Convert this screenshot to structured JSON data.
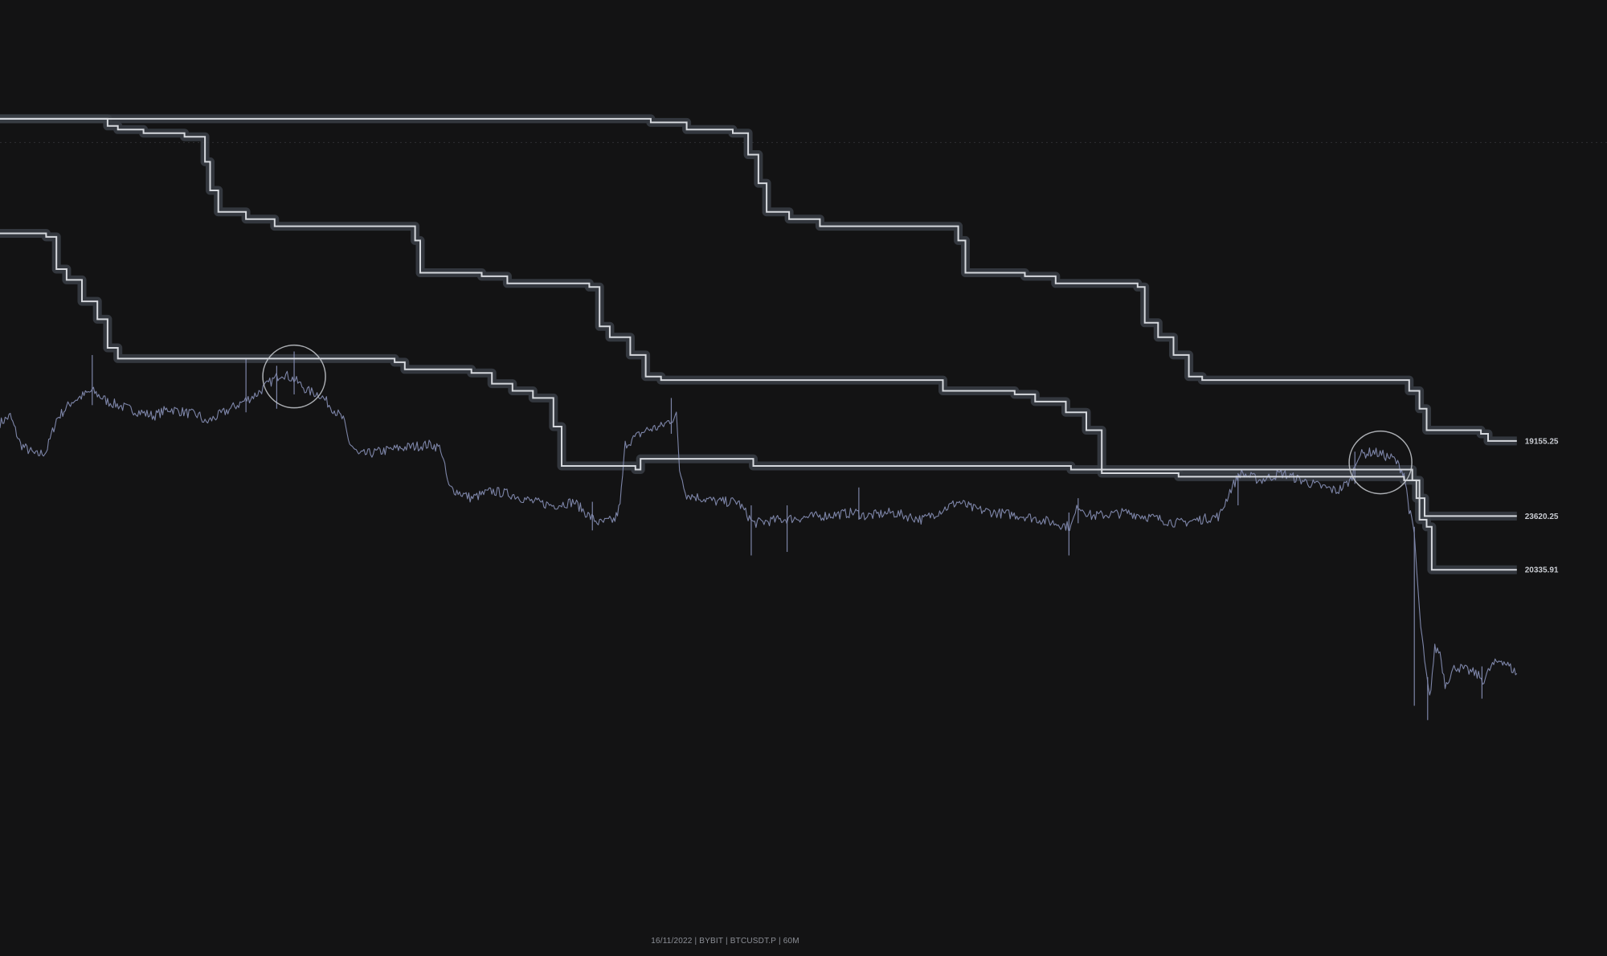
{
  "footer": {
    "date": "16/11/2022",
    "exchange": "BYBIT",
    "symbol": "BTCUSDT.P",
    "timeframe": "60M",
    "separator": "|"
  },
  "colors": {
    "background": "#131314",
    "price": "#7d85a8",
    "level_line": "#d6d9de",
    "level_glow": "#3a3e45",
    "circle": "#c8cbd0",
    "dotted_line": "#2f3033",
    "label": "#c9ccd2"
  },
  "chart_data": {
    "type": "line",
    "title": "",
    "xlabel": "",
    "ylabel": "",
    "ylim": [
      15400,
      25950
    ],
    "grid": false,
    "reference_line": 24970,
    "price_series": {
      "name": "",
      "anchors": [
        [
          0,
          21050
        ],
        [
          10,
          21150
        ],
        [
          20,
          20750
        ],
        [
          35,
          20600
        ],
        [
          45,
          20650
        ],
        [
          55,
          21100
        ],
        [
          70,
          21350
        ],
        [
          90,
          21500
        ],
        [
          105,
          21350
        ],
        [
          125,
          21250
        ],
        [
          150,
          21150
        ],
        [
          165,
          21250
        ],
        [
          195,
          21150
        ],
        [
          200,
          21050
        ],
        [
          225,
          21250
        ],
        [
          250,
          21450
        ],
        [
          262,
          21600
        ],
        [
          275,
          21750
        ],
        [
          288,
          21650
        ],
        [
          300,
          21500
        ],
        [
          312,
          21450
        ],
        [
          325,
          21250
        ],
        [
          335,
          21100
        ],
        [
          340,
          20800
        ],
        [
          350,
          20600
        ],
        [
          390,
          20700
        ],
        [
          420,
          20750
        ],
        [
          430,
          20700
        ],
        [
          438,
          20150
        ],
        [
          460,
          20000
        ],
        [
          480,
          20100
        ],
        [
          500,
          20050
        ],
        [
          520,
          19950
        ],
        [
          540,
          19900
        ],
        [
          560,
          19950
        ],
        [
          575,
          19750
        ],
        [
          585,
          19650
        ],
        [
          600,
          19700
        ],
        [
          605,
          19900
        ],
        [
          610,
          20750
        ],
        [
          630,
          20950
        ],
        [
          645,
          21000
        ],
        [
          655,
          21100
        ],
        [
          660,
          21150
        ],
        [
          663,
          20400
        ],
        [
          670,
          20050
        ],
        [
          700,
          19950
        ],
        [
          720,
          19950
        ],
        [
          735,
          19650
        ],
        [
          760,
          19700
        ],
        [
          800,
          19750
        ],
        [
          835,
          19800
        ],
        [
          845,
          19750
        ],
        [
          870,
          19800
        ],
        [
          900,
          19700
        ],
        [
          935,
          19950
        ],
        [
          950,
          19850
        ],
        [
          970,
          19800
        ],
        [
          1000,
          19750
        ],
        [
          1030,
          19650
        ],
        [
          1045,
          19600
        ],
        [
          1052,
          19900
        ],
        [
          1065,
          19750
        ],
        [
          1100,
          19800
        ],
        [
          1150,
          19650
        ],
        [
          1190,
          19750
        ],
        [
          1200,
          20100
        ],
        [
          1210,
          20350
        ],
        [
          1230,
          20250
        ],
        [
          1250,
          20350
        ],
        [
          1280,
          20200
        ],
        [
          1305,
          20100
        ],
        [
          1318,
          20250
        ],
        [
          1325,
          20600
        ],
        [
          1340,
          20650
        ],
        [
          1360,
          20550
        ],
        [
          1370,
          20350
        ],
        [
          1375,
          19850
        ],
        [
          1380,
          19500
        ],
        [
          1385,
          18400
        ],
        [
          1390,
          17700
        ],
        [
          1395,
          17200
        ],
        [
          1400,
          17900
        ],
        [
          1405,
          17850
        ],
        [
          1410,
          17400
        ],
        [
          1420,
          17650
        ],
        [
          1440,
          17550
        ],
        [
          1448,
          17450
        ],
        [
          1455,
          17650
        ],
        [
          1465,
          17750
        ],
        [
          1480,
          17550
        ]
      ],
      "wicks": [
        [
          90,
          22000,
          21300
        ],
        [
          240,
          21950,
          21200
        ],
        [
          270,
          21850,
          21250
        ],
        [
          287,
          22050,
          21450
        ],
        [
          655,
          21400,
          20900
        ],
        [
          578,
          19550,
          19950
        ],
        [
          733,
          19200,
          19900
        ],
        [
          768,
          19250,
          19900
        ],
        [
          838,
          20150,
          19700
        ],
        [
          1043,
          19200,
          19800
        ],
        [
          1052,
          20000,
          19650
        ],
        [
          1208,
          20350,
          19900
        ],
        [
          1322,
          20650,
          20200
        ],
        [
          1393,
          16900,
          17500
        ],
        [
          1380,
          17100,
          19600
        ],
        [
          1446,
          17200,
          17650
        ]
      ]
    },
    "level_series": [
      {
        "name": "",
        "value": 23620.25,
        "label": "23620.25",
        "start": [
          0,
          25300
        ],
        "end_x": 1480,
        "steps": [
          [
            105,
            25200
          ],
          [
            115,
            25150
          ],
          [
            140,
            25100
          ],
          [
            180,
            25050
          ],
          [
            200,
            24700
          ],
          [
            205,
            24300
          ],
          [
            213,
            24000
          ],
          [
            240,
            23900
          ],
          [
            268,
            23800
          ],
          [
            405,
            23600
          ],
          [
            410,
            23150
          ],
          [
            470,
            23100
          ],
          [
            495,
            23000
          ],
          [
            575,
            22950
          ],
          [
            585,
            22400
          ],
          [
            595,
            22250
          ],
          [
            615,
            22000
          ],
          [
            630,
            21700
          ],
          [
            645,
            21650
          ],
          [
            920,
            21500
          ],
          [
            990,
            21450
          ],
          [
            1010,
            21350
          ],
          [
            1040,
            21200
          ],
          [
            1060,
            20950
          ],
          [
            1075,
            20350
          ],
          [
            1150,
            20300
          ],
          [
            1370,
            20250
          ],
          [
            1382,
            20000
          ],
          [
            1390,
            19750
          ],
          [
            1480,
            19750
          ]
        ]
      },
      {
        "name": "",
        "value": 20335.91,
        "label": "20335.91",
        "start": [
          0,
          23700
        ],
        "end_x": 1480,
        "steps": [
          [
            45,
            23650
          ],
          [
            55,
            23200
          ],
          [
            65,
            23050
          ],
          [
            80,
            22750
          ],
          [
            95,
            22500
          ],
          [
            105,
            22100
          ],
          [
            115,
            21950
          ],
          [
            385,
            21900
          ],
          [
            395,
            21800
          ],
          [
            460,
            21750
          ],
          [
            480,
            21600
          ],
          [
            500,
            21500
          ],
          [
            520,
            21400
          ],
          [
            540,
            21000
          ],
          [
            548,
            20450
          ],
          [
            620,
            20400
          ],
          [
            625,
            20550
          ],
          [
            660,
            20550
          ],
          [
            735,
            20450
          ],
          [
            1045,
            20400
          ],
          [
            1075,
            20400
          ],
          [
            1150,
            20400
          ],
          [
            1378,
            20250
          ],
          [
            1385,
            19700
          ],
          [
            1392,
            19600
          ],
          [
            1397,
            19000
          ],
          [
            1480,
            19000
          ]
        ]
      },
      {
        "name": "",
        "value": 19155.25,
        "label": "19155.25",
        "start": [
          0,
          25300
        ],
        "end_x": 1480,
        "steps": [
          [
            635,
            25250
          ],
          [
            670,
            25150
          ],
          [
            715,
            25100
          ],
          [
            730,
            24800
          ],
          [
            740,
            24400
          ],
          [
            748,
            24000
          ],
          [
            770,
            23900
          ],
          [
            800,
            23800
          ],
          [
            935,
            23600
          ],
          [
            942,
            23150
          ],
          [
            1000,
            23100
          ],
          [
            1030,
            23000
          ],
          [
            1110,
            22950
          ],
          [
            1117,
            22450
          ],
          [
            1130,
            22250
          ],
          [
            1145,
            22000
          ],
          [
            1160,
            21700
          ],
          [
            1173,
            21650
          ],
          [
            1375,
            21500
          ],
          [
            1385,
            21250
          ],
          [
            1392,
            20950
          ],
          [
            1445,
            20900
          ],
          [
            1452,
            20800
          ],
          [
            1480,
            20800
          ]
        ]
      }
    ],
    "highlight_circles": [
      {
        "x": 287,
        "y": 21700
      },
      {
        "x": 1347,
        "y": 20500
      }
    ]
  }
}
